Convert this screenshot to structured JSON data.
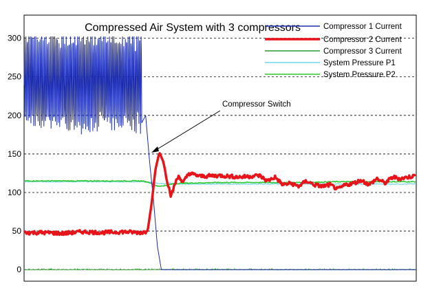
{
  "chart_data": {
    "type": "line",
    "title": "Compressed Air System with 3 compressors",
    "xlabel": "",
    "ylabel": "",
    "ylim": [
      -15,
      330
    ],
    "y_ticks": [
      0,
      50,
      100,
      150,
      200,
      250,
      300
    ],
    "grid": "horizontal dashed",
    "legend_position": "top-right",
    "annotation": {
      "text": "Compressor Switch",
      "x": 33,
      "y": 150
    },
    "series": [
      {
        "name": "Compressor 1 Current",
        "color": "#1a2bb0",
        "x": [
          0,
          5,
          10,
          15,
          20,
          25,
          30,
          31,
          32,
          33,
          34,
          35,
          36,
          100
        ],
        "y": [
          245,
          245,
          245,
          245,
          245,
          245,
          245,
          200,
          140,
          90,
          30,
          0,
          0,
          0
        ]
      },
      {
        "name": "Compressor 2 Current",
        "color": "#e8141a",
        "x": [
          0,
          5,
          10,
          15,
          20,
          25,
          30,
          31.5,
          32.5,
          33.5,
          34.5,
          35.5,
          36.5,
          37.5,
          38.5,
          39.5,
          40.5,
          42,
          45,
          50,
          55,
          60,
          62,
          64,
          66,
          68,
          70,
          72,
          74,
          76,
          78,
          80,
          82,
          84,
          86,
          88,
          90,
          92,
          94,
          96,
          98,
          100
        ],
        "y": [
          48,
          48,
          47,
          49,
          48,
          49,
          48,
          50,
          85,
          130,
          152,
          140,
          115,
          95,
          112,
          122,
          112,
          125,
          121,
          122,
          120,
          122,
          115,
          120,
          110,
          112,
          108,
          115,
          110,
          108,
          110,
          104,
          110,
          112,
          116,
          110,
          118,
          112,
          120,
          118,
          120,
          122
        ]
      },
      {
        "name": "Compressor 3 Current",
        "color": "#2a9a2a",
        "x": [
          0,
          100
        ],
        "y": [
          0,
          0
        ]
      },
      {
        "name": "System Pressure  P1",
        "color": "#6fd6e8",
        "x": [
          0,
          10,
          20,
          30,
          32,
          34,
          36,
          38,
          40,
          50,
          60,
          70,
          80,
          90,
          100
        ],
        "y": [
          114,
          114,
          114,
          114,
          113,
          112,
          111,
          112,
          111,
          111,
          111,
          111,
          111,
          111,
          111
        ]
      },
      {
        "name": "System Pressure P2",
        "color": "#2ec82e",
        "x": [
          0,
          10,
          20,
          30,
          32,
          34,
          36,
          38,
          40,
          50,
          60,
          70,
          80,
          90,
          100
        ],
        "y": [
          115,
          115,
          115,
          115,
          113,
          108,
          109,
          111,
          112,
          113,
          113,
          113,
          114,
          114,
          114
        ]
      }
    ]
  }
}
